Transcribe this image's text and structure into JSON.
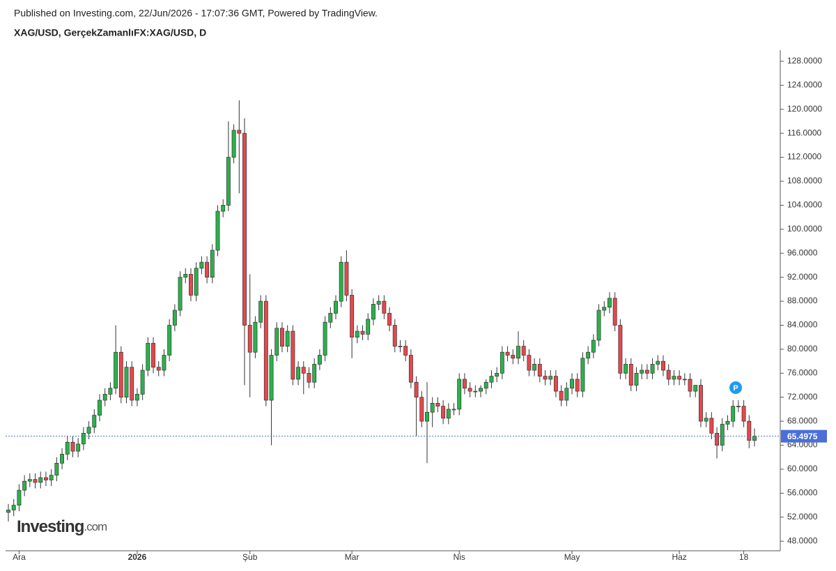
{
  "header": "Published on Investing.com, 22/Jun/2026 - 17:07:36 GMT, Powered by TradingView.",
  "logo": {
    "name": "Investing",
    "suffix": ".com"
  },
  "chart_data": {
    "type": "candlestick",
    "title": "XAG/USD, GerçekZamanlıFX:XAG/USD, D",
    "categories": [
      null,
      null,
      "Ara",
      null,
      null,
      null,
      null,
      null,
      null,
      null,
      null,
      null,
      null,
      null,
      null,
      null,
      null,
      null,
      null,
      null,
      null,
      null,
      null,
      null,
      "2026",
      null,
      null,
      null,
      null,
      null,
      null,
      null,
      null,
      null,
      null,
      null,
      null,
      null,
      null,
      null,
      null,
      null,
      null,
      null,
      null,
      "Şub",
      null,
      null,
      null,
      null,
      null,
      null,
      null,
      null,
      null,
      null,
      null,
      null,
      null,
      null,
      null,
      null,
      null,
      null,
      "Mar",
      null,
      null,
      null,
      null,
      null,
      null,
      null,
      null,
      null,
      null,
      null,
      null,
      null,
      null,
      null,
      null,
      null,
      null,
      null,
      "Nis",
      null,
      null,
      null,
      null,
      null,
      null,
      null,
      null,
      null,
      null,
      null,
      null,
      null,
      null,
      null,
      null,
      null,
      null,
      null,
      null,
      "May",
      null,
      null,
      null,
      null,
      null,
      null,
      null,
      null,
      null,
      null,
      null,
      null,
      null,
      null,
      null,
      null,
      null,
      null,
      null,
      "Haz",
      null,
      null,
      null,
      null,
      null,
      null,
      null,
      null,
      null,
      null,
      null,
      "18",
      null,
      null
    ],
    "open": [
      52.8,
      53.2,
      54.0,
      56.5,
      58.0,
      58.3,
      57.8,
      58.6,
      58.2,
      59.0,
      61.0,
      62.5,
      64.5,
      63.0,
      64.2,
      66.0,
      67.0,
      69.0,
      71.5,
      72.5,
      73.5,
      79.5,
      72.0,
      77.0,
      71.5,
      72.5,
      76.5,
      81.0,
      77.0,
      76.5,
      79.0,
      84.0,
      86.5,
      92.0,
      92.5,
      89.0,
      93.5,
      94.5,
      92.0,
      96.5,
      103.0,
      104.0,
      112.0,
      116.5,
      116.0,
      84.0,
      79.5,
      84.5,
      88.0,
      71.5,
      79.0,
      83.5,
      80.5,
      83.0,
      75.0,
      77.0,
      76.0,
      74.5,
      77.5,
      79.0,
      84.5,
      86.0,
      88.0,
      94.5,
      89.0,
      82.0,
      83.0,
      82.5,
      85.0,
      87.5,
      88.0,
      86.0,
      84.0,
      80.5,
      80.5,
      79.0,
      74.5,
      72.0,
      68.0,
      69.5,
      71.0,
      70.5,
      68.5,
      70.0,
      70.0,
      75.0,
      73.5,
      73.0,
      73.0,
      73.5,
      74.5,
      75.5,
      76.0,
      79.5,
      79.0,
      78.5,
      80.5,
      79.0,
      76.5,
      77.5,
      75.5,
      75.0,
      75.5,
      73.0,
      71.5,
      73.5,
      75.0,
      73.0,
      78.5,
      79.5,
      81.5,
      86.5,
      87.0,
      88.5,
      84.0,
      76.0,
      77.5,
      74.0,
      76.0,
      76.5,
      76.0,
      77.5,
      78.0,
      76.5,
      75.0,
      75.5,
      75.0,
      75.0,
      73.0,
      74.0,
      68.0,
      68.5,
      66.0,
      64.0,
      67.5,
      68.0,
      70.5,
      70.5,
      68.0,
      64.8
    ],
    "high": [
      54.2,
      55.0,
      57.5,
      59.0,
      59.3,
      59.3,
      59.6,
      59.6,
      60.0,
      62.0,
      63.5,
      65.5,
      65.5,
      65.2,
      67.0,
      68.0,
      70.0,
      72.5,
      73.5,
      74.5,
      84.0,
      80.5,
      78.0,
      78.0,
      73.5,
      77.5,
      82.0,
      82.0,
      78.0,
      80.0,
      85.0,
      87.5,
      93.0,
      93.5,
      93.5,
      94.5,
      95.5,
      95.5,
      97.5,
      104.0,
      105.0,
      118.0,
      117.5,
      121.5,
      118.5,
      92.5,
      85.5,
      89.0,
      89.0,
      80.0,
      84.5,
      84.5,
      84.0,
      84.0,
      78.0,
      78.0,
      77.0,
      78.5,
      80.0,
      85.5,
      87.0,
      89.0,
      95.5,
      96.5,
      90.0,
      84.0,
      84.0,
      86.0,
      88.5,
      89.0,
      89.0,
      87.0,
      85.0,
      81.5,
      81.5,
      80.0,
      75.5,
      73.0,
      74.5,
      72.0,
      72.0,
      71.5,
      71.0,
      71.0,
      76.0,
      76.0,
      74.5,
      74.0,
      74.0,
      75.0,
      76.5,
      77.0,
      80.5,
      80.5,
      80.0,
      83.0,
      81.5,
      80.0,
      78.5,
      78.5,
      76.5,
      76.5,
      76.5,
      74.0,
      74.5,
      76.0,
      76.0,
      79.5,
      80.5,
      82.5,
      87.5,
      88.0,
      89.5,
      89.5,
      85.0,
      78.5,
      78.5,
      77.0,
      77.5,
      77.5,
      78.5,
      79.0,
      79.0,
      77.5,
      76.5,
      76.5,
      76.0,
      76.0,
      74.0,
      75.0,
      69.5,
      69.5,
      67.0,
      68.5,
      69.0,
      71.5,
      71.5,
      71.5,
      69.0,
      66.8
    ],
    "low": [
      51.3,
      52.2,
      53.0,
      55.5,
      57.0,
      56.8,
      56.8,
      57.2,
      57.2,
      58.0,
      60.0,
      61.5,
      62.0,
      62.0,
      63.2,
      65.0,
      66.0,
      68.0,
      70.5,
      71.5,
      72.5,
      71.0,
      71.0,
      70.5,
      70.5,
      71.5,
      75.5,
      76.0,
      75.5,
      75.5,
      78.0,
      83.0,
      85.5,
      91.0,
      88.0,
      88.0,
      92.5,
      91.0,
      91.0,
      95.5,
      102.0,
      103.0,
      111.0,
      106.0,
      74.0,
      72.0,
      78.5,
      83.5,
      70.5,
      64.0,
      78.0,
      79.5,
      79.5,
      74.0,
      74.0,
      72.5,
      73.5,
      73.5,
      76.5,
      78.0,
      83.5,
      85.0,
      87.0,
      88.0,
      78.5,
      81.0,
      81.5,
      81.5,
      84.0,
      86.5,
      85.0,
      83.0,
      79.5,
      79.5,
      78.0,
      73.5,
      65.5,
      67.0,
      61.0,
      67.0,
      69.5,
      67.5,
      67.5,
      69.0,
      69.0,
      72.5,
      72.0,
      72.0,
      72.0,
      72.5,
      73.5,
      74.5,
      75.0,
      78.0,
      77.5,
      77.5,
      78.0,
      75.5,
      75.5,
      74.5,
      74.0,
      74.0,
      72.0,
      70.5,
      70.5,
      72.5,
      72.0,
      72.0,
      77.5,
      78.5,
      80.5,
      85.5,
      86.0,
      83.0,
      75.0,
      75.0,
      73.0,
      73.0,
      75.0,
      75.0,
      75.0,
      76.5,
      75.5,
      74.0,
      74.0,
      74.0,
      74.0,
      72.0,
      72.0,
      67.0,
      67.0,
      65.0,
      61.8,
      63.0,
      66.5,
      67.0,
      69.5,
      67.0,
      63.5,
      63.8
    ],
    "close": [
      53.2,
      54.0,
      56.5,
      58.0,
      58.3,
      57.8,
      58.6,
      58.2,
      59.0,
      61.0,
      62.5,
      64.5,
      63.0,
      64.2,
      66.0,
      67.0,
      69.0,
      71.5,
      72.5,
      73.5,
      79.5,
      72.0,
      77.0,
      71.5,
      72.5,
      76.5,
      81.0,
      77.0,
      76.5,
      79.0,
      84.0,
      86.5,
      92.0,
      92.5,
      89.0,
      93.5,
      94.5,
      92.0,
      96.5,
      103.0,
      104.0,
      112.0,
      116.5,
      116.0,
      84.0,
      79.5,
      84.5,
      88.0,
      71.5,
      79.0,
      83.5,
      80.5,
      83.0,
      75.0,
      77.0,
      76.0,
      74.5,
      77.5,
      79.0,
      84.5,
      86.0,
      88.0,
      94.5,
      89.0,
      82.0,
      83.0,
      82.5,
      85.0,
      87.5,
      88.0,
      86.0,
      84.0,
      80.5,
      80.5,
      79.0,
      74.5,
      72.0,
      68.0,
      69.5,
      71.0,
      70.5,
      68.5,
      70.0,
      70.0,
      75.0,
      73.5,
      73.0,
      73.0,
      73.5,
      74.5,
      75.5,
      76.0,
      79.5,
      79.0,
      78.5,
      80.5,
      79.0,
      76.5,
      77.5,
      75.5,
      75.0,
      75.5,
      73.0,
      71.5,
      73.5,
      75.0,
      73.0,
      78.5,
      79.5,
      81.5,
      86.5,
      87.0,
      88.5,
      84.0,
      76.0,
      77.5,
      74.0,
      76.0,
      76.5,
      76.0,
      77.5,
      78.0,
      76.5,
      75.0,
      75.5,
      75.0,
      75.0,
      73.0,
      74.0,
      68.0,
      68.5,
      66.0,
      64.0,
      67.5,
      68.0,
      70.5,
      70.5,
      68.0,
      64.8,
      65.5
    ],
    "up_color": "#2bb24c",
    "down_color": "#e5484d",
    "last_price": 65.4975,
    "last_price_color": "#4a6fd6",
    "marker": "P",
    "ylim": [
      46.4,
      129.5
    ],
    "yticks": [
      {
        "value": 48,
        "label": "48.0000"
      },
      {
        "value": 52,
        "label": "52.0000"
      },
      {
        "value": 56,
        "label": "56.0000"
      },
      {
        "value": 60,
        "label": "60.0000"
      },
      {
        "value": 64,
        "label": "64.0000"
      },
      {
        "value": 68,
        "label": "68.0000"
      },
      {
        "value": 72,
        "label": "72.0000"
      },
      {
        "value": 76,
        "label": "76.0000"
      },
      {
        "value": 80,
        "label": "80.0000"
      },
      {
        "value": 84,
        "label": "84.0000"
      },
      {
        "value": 88,
        "label": "88.0000"
      },
      {
        "value": 92,
        "label": "92.0000"
      },
      {
        "value": 96,
        "label": "96.0000"
      },
      {
        "value": 100,
        "label": "100.0000"
      },
      {
        "value": 104,
        "label": "104.0000"
      },
      {
        "value": 108,
        "label": "108.0000"
      },
      {
        "value": 112,
        "label": "112.0000"
      },
      {
        "value": 116,
        "label": "116.0000"
      },
      {
        "value": 120,
        "label": "120.0000"
      },
      {
        "value": 124,
        "label": "124.0000"
      },
      {
        "value": 128,
        "label": "128.0000"
      }
    ]
  }
}
